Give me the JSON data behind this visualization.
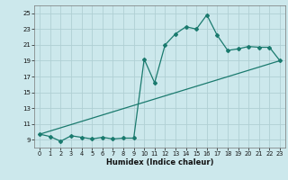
{
  "title": "",
  "xlabel": "Humidex (Indice chaleur)",
  "bg_color": "#cce8ec",
  "grid_color": "#b0cfd4",
  "line_color": "#1a7a6e",
  "xlim": [
    -0.5,
    23.5
  ],
  "ylim": [
    8.0,
    26.0
  ],
  "yticks": [
    9,
    11,
    13,
    15,
    17,
    19,
    21,
    23,
    25
  ],
  "xticks": [
    0,
    1,
    2,
    3,
    4,
    5,
    6,
    7,
    8,
    9,
    10,
    11,
    12,
    13,
    14,
    15,
    16,
    17,
    18,
    19,
    20,
    21,
    22,
    23
  ],
  "line1_x": [
    0,
    1,
    2,
    3,
    4,
    5,
    6,
    7,
    8,
    9,
    10,
    11,
    12,
    13,
    14,
    15,
    16,
    17,
    18,
    19,
    20,
    21,
    22,
    23
  ],
  "line1_y": [
    9.7,
    9.4,
    8.8,
    9.5,
    9.3,
    9.1,
    9.3,
    9.1,
    9.2,
    9.2,
    19.2,
    16.2,
    21.0,
    22.4,
    23.3,
    23.0,
    24.8,
    22.2,
    20.3,
    20.5,
    20.8,
    20.7,
    20.7,
    19.0
  ],
  "line2_x": [
    0,
    23
  ],
  "line2_y": [
    9.7,
    19.0
  ]
}
